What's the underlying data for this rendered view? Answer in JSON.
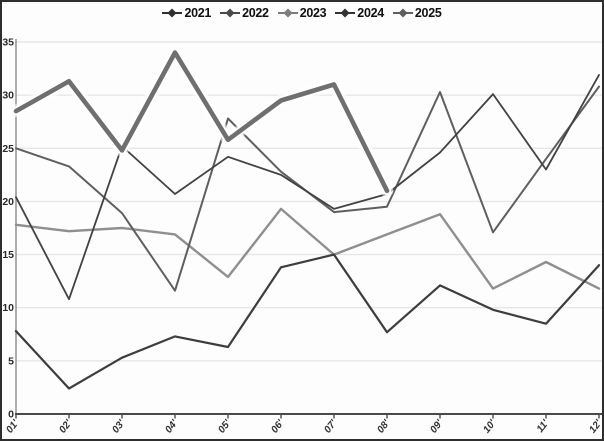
{
  "chart_data": {
    "type": "line",
    "title": "",
    "xlabel": "",
    "ylabel": "",
    "x": [
      "01'",
      "02'",
      "03'",
      "04'",
      "05'",
      "06'",
      "07'",
      "08'",
      "09'",
      "10'",
      "11'",
      "12'"
    ],
    "yticks": [
      0,
      5,
      10,
      15,
      20,
      25,
      30,
      35
    ],
    "ylim": [
      0,
      35
    ],
    "grid": "horizontal",
    "legend_position": "top-center",
    "series": [
      {
        "name": "2021",
        "color": "#3d3d3d",
        "width": 2.2,
        "halo": false,
        "values": [
          7.8,
          2.4,
          5.3,
          7.3,
          6.3,
          13.8,
          15.0,
          7.7,
          12.1,
          9.8,
          8.5,
          14.0
        ]
      },
      {
        "name": "2022",
        "color": "#5f5f5f",
        "width": 2.0,
        "halo": false,
        "values": [
          25.0,
          23.3,
          18.9,
          11.6,
          27.8,
          22.8,
          19.0,
          19.5,
          30.3,
          17.1,
          24.0,
          30.8
        ]
      },
      {
        "name": "2023",
        "color": "#8f8f8f",
        "width": 2.4,
        "halo": false,
        "values": [
          17.8,
          17.2,
          17.5,
          16.9,
          12.9,
          19.3,
          15.0,
          16.9,
          18.8,
          11.8,
          14.3,
          11.8
        ]
      },
      {
        "name": "2024",
        "color": "#424242",
        "width": 1.8,
        "halo": false,
        "values": [
          20.4,
          10.8,
          25.2,
          20.7,
          24.2,
          22.5,
          19.3,
          20.7,
          24.6,
          30.1,
          23.0,
          31.9
        ]
      },
      {
        "name": "2025",
        "color": "#6f6f6f",
        "width": 4.6,
        "halo": true,
        "values": [
          28.5,
          31.3,
          24.8,
          34.0,
          25.8,
          29.5,
          31.0,
          21.0,
          null,
          null,
          null,
          null
        ]
      }
    ],
    "colors": {
      "gridline": "#e7e7e7",
      "axis": "#4a4a4a",
      "halo": "#ffffff"
    }
  },
  "legend": {
    "items": [
      {
        "label": "2021",
        "marker": "diamond-line",
        "color": "#2f2f2f"
      },
      {
        "label": "2022",
        "marker": "diamond-line",
        "color": "#4a4a4a"
      },
      {
        "label": "2023",
        "marker": "diamond-line",
        "color": "#7c7c7c"
      },
      {
        "label": "2024",
        "marker": "diamond-line",
        "color": "#333333"
      },
      {
        "label": "2025",
        "marker": "diamond-line",
        "color": "#5f5f5f"
      }
    ]
  }
}
